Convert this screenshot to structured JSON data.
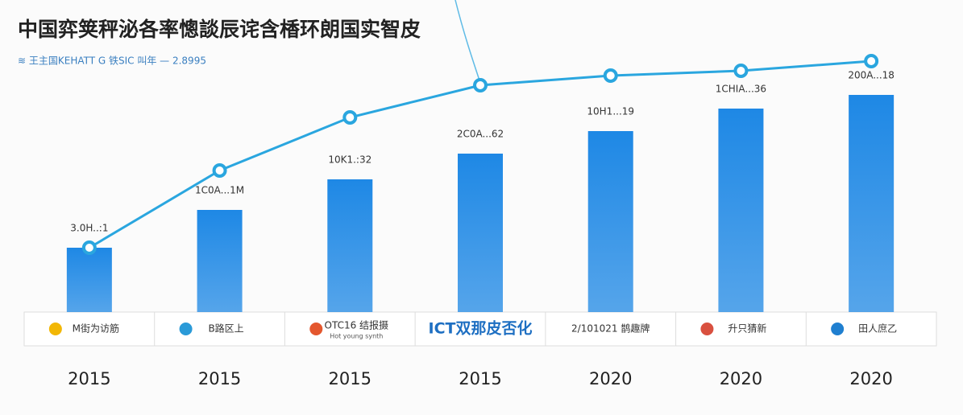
{
  "chart_data": {
    "type": "bar",
    "title": "中国弈䇲秤泌各率憁談辰诧含楿环朗国实智皮",
    "subtitle": "≋ 王主国KEHATT G 铁SIC  叫年  —  2.8995",
    "categories": [
      "2015",
      "2015",
      "2015",
      "2015",
      "2020",
      "2020",
      "2020"
    ],
    "bars": {
      "color": "#1e88e5",
      "values": [
        80,
        127,
        165,
        197,
        225,
        253,
        270
      ]
    },
    "line": {
      "color": "#2aa6df",
      "values": [
        80,
        176,
        242,
        282,
        294,
        300,
        312
      ]
    },
    "bar_labels": [
      "3.0H..:1",
      "1C0A...1M",
      "10K1.:32",
      "2C0A...62",
      "10H1...19",
      "1CHIA...36",
      "200A...18"
    ],
    "logos": [
      "M街为访筋",
      "B路区上",
      "OTC16 结报摄",
      "ICT双那皮否化",
      "2/101021 鹊趣牌",
      "升只猜新",
      "田人庶乙"
    ],
    "logo_caption": "Hot young synth",
    "ylim": [
      0,
      388
    ]
  }
}
